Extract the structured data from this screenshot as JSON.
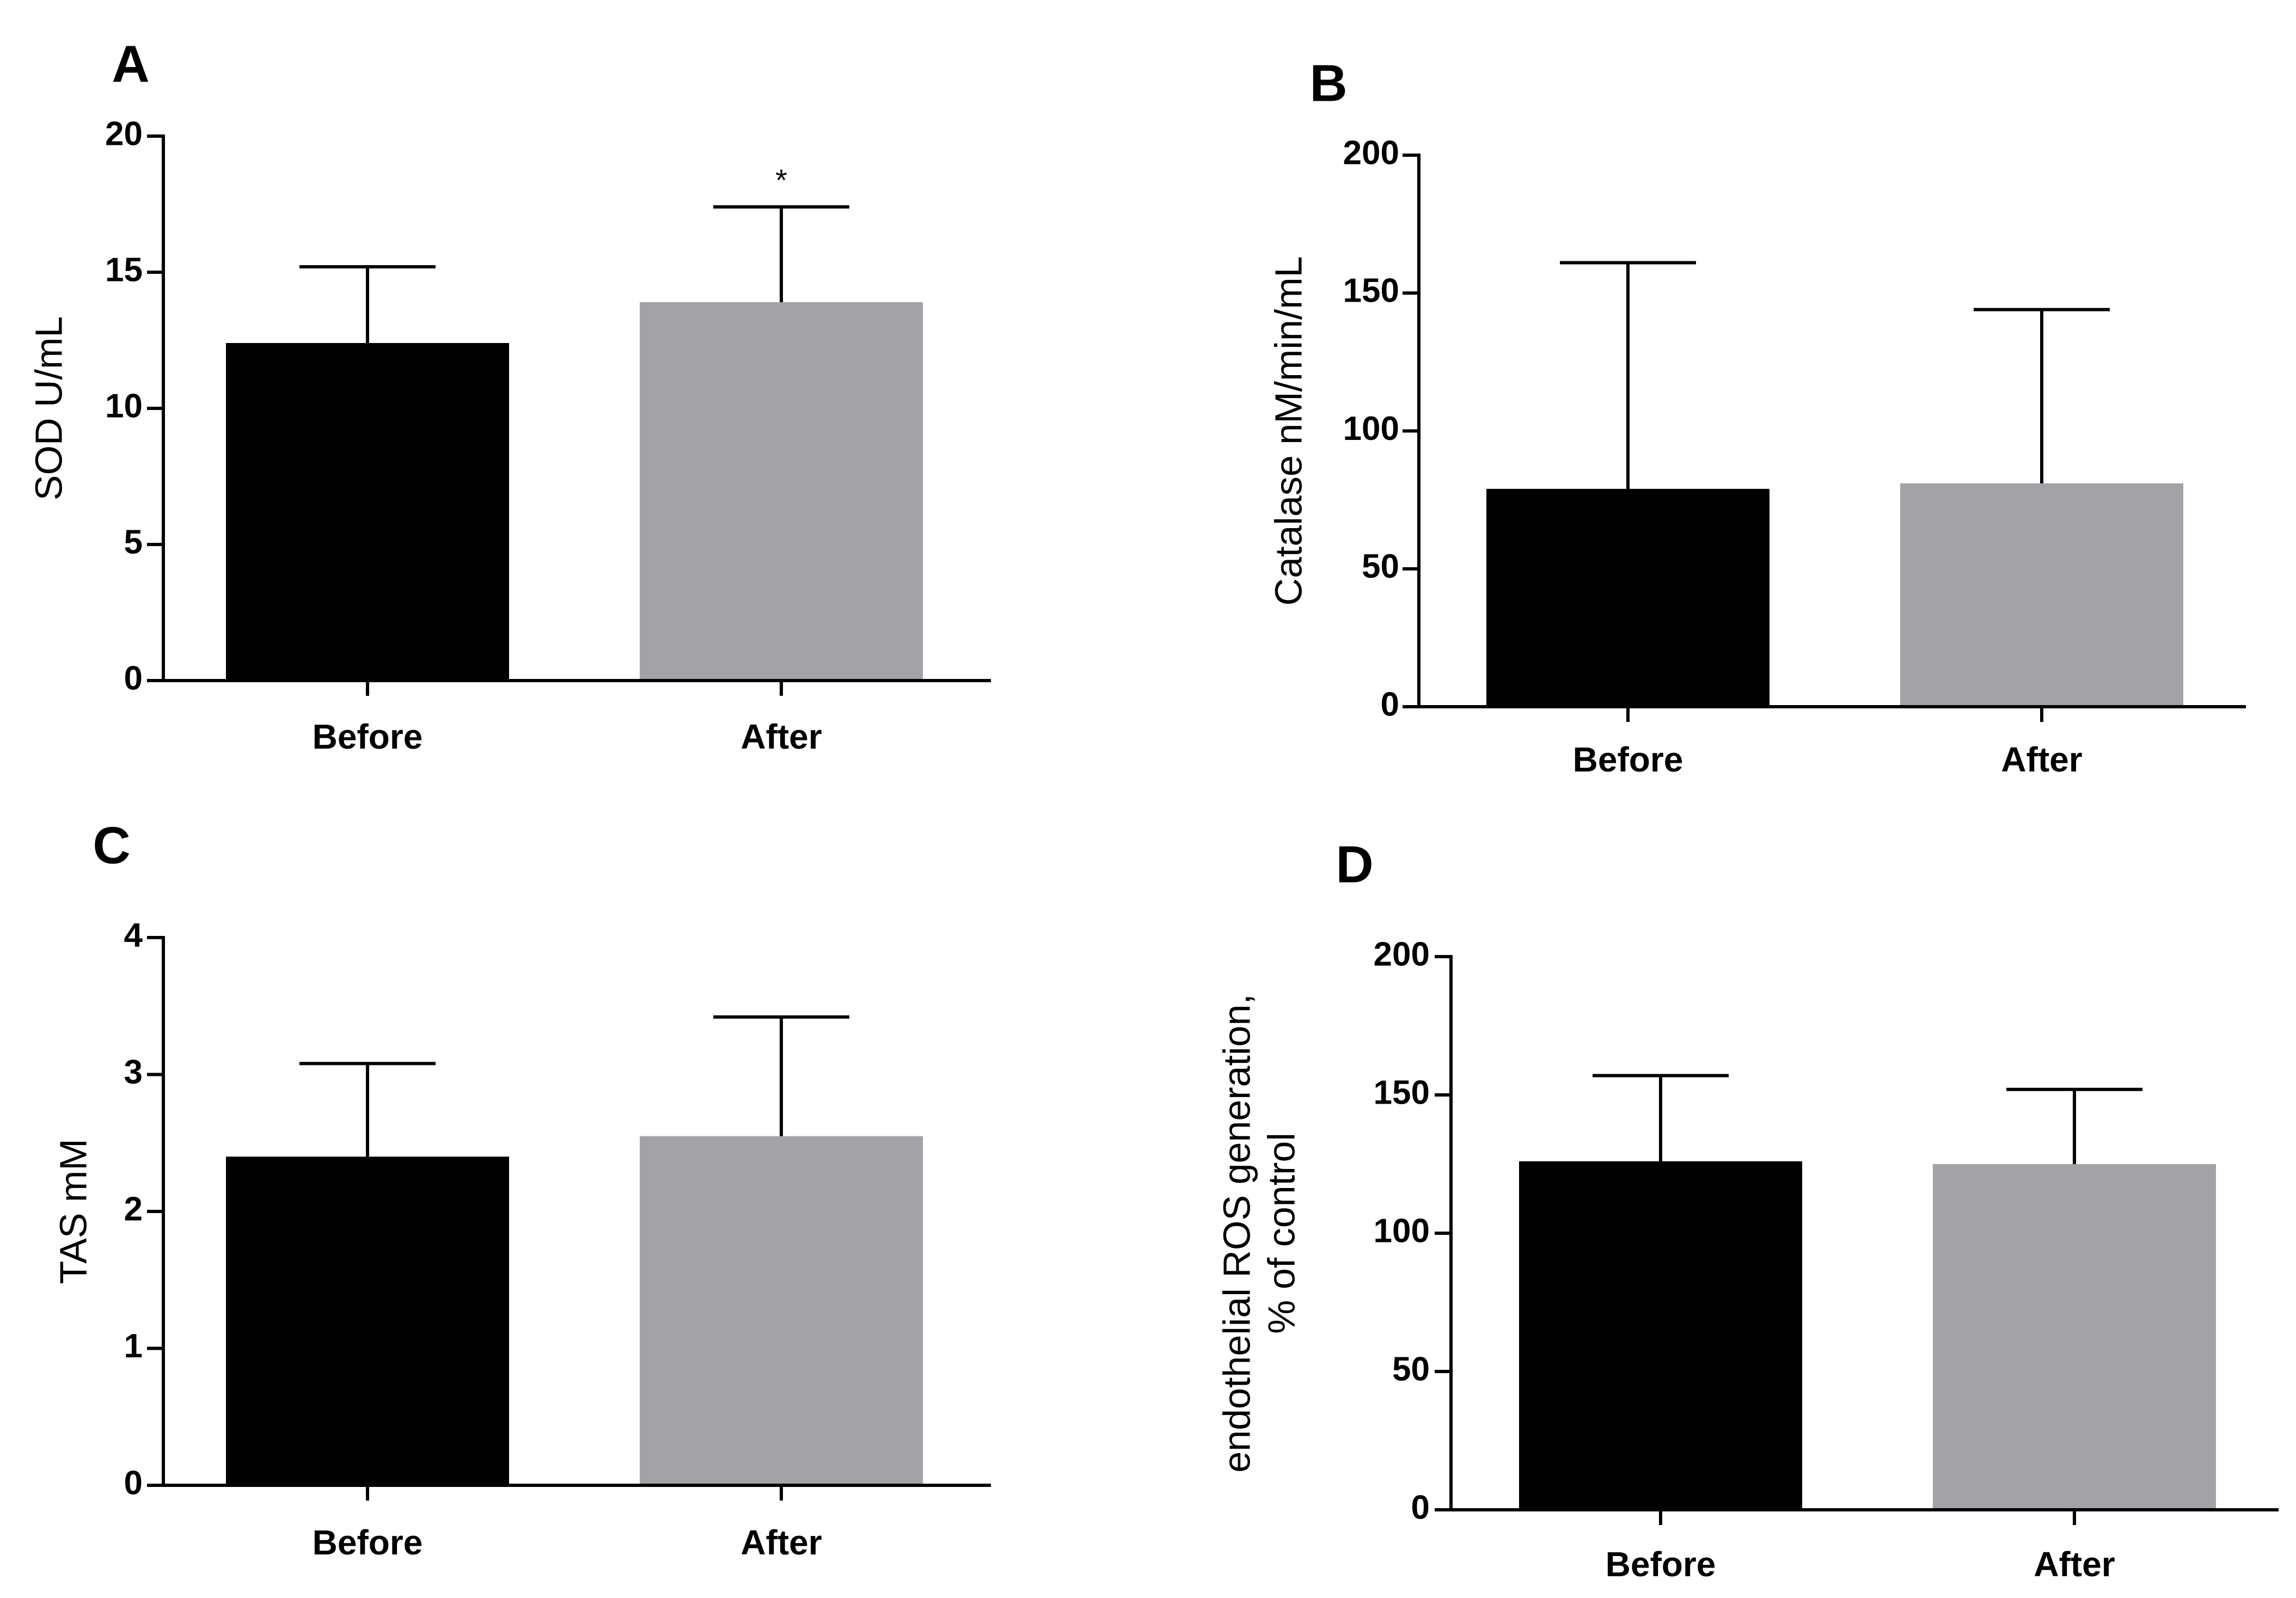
{
  "figure": {
    "colors": {
      "before": "#000000",
      "after": "#a3a2a6",
      "axis": "#000000",
      "error_bar": "#000000"
    }
  },
  "chart_data": [
    {
      "panel": "A",
      "type": "bar",
      "categories": [
        "Before",
        "After"
      ],
      "values": [
        12.4,
        13.9
      ],
      "error_upper": [
        15.2,
        17.4
      ],
      "ylabel": "SOD U/mL",
      "ylabel_lines": [
        "SOD U/mL"
      ],
      "xlabel": "",
      "ylim": [
        0,
        20
      ],
      "yticks": [
        0,
        5,
        10,
        15,
        20
      ],
      "significance": [
        "",
        "*"
      ],
      "grid": false
    },
    {
      "panel": "B",
      "type": "bar",
      "categories": [
        "Before",
        "After"
      ],
      "values": [
        79,
        81
      ],
      "error_upper": [
        161,
        144
      ],
      "ylabel": "Catalase nM/min/mL",
      "ylabel_lines": [
        "Catalase nM/min/mL"
      ],
      "xlabel": "",
      "ylim": [
        0,
        200
      ],
      "yticks": [
        0,
        50,
        100,
        150,
        200
      ],
      "significance": [
        "",
        ""
      ],
      "grid": false
    },
    {
      "panel": "C",
      "type": "bar",
      "categories": [
        "Before",
        "After"
      ],
      "values": [
        2.4,
        2.55
      ],
      "error_upper": [
        3.08,
        3.42
      ],
      "ylabel": "TAS mM",
      "ylabel_lines": [
        "TAS mM"
      ],
      "xlabel": "",
      "ylim": [
        0,
        4
      ],
      "yticks": [
        0,
        1,
        2,
        3,
        4
      ],
      "significance": [
        "",
        ""
      ],
      "grid": false
    },
    {
      "panel": "D",
      "type": "bar",
      "categories": [
        "Before",
        "After"
      ],
      "values": [
        126,
        125
      ],
      "error_upper": [
        157,
        152
      ],
      "ylabel": "endothelial ROS generation, % of control",
      "ylabel_lines": [
        "endothelial ROS generation,",
        "% of control"
      ],
      "xlabel": "",
      "ylim": [
        0,
        200
      ],
      "yticks": [
        0,
        50,
        100,
        150,
        200
      ],
      "significance": [
        "",
        ""
      ],
      "grid": false
    }
  ]
}
